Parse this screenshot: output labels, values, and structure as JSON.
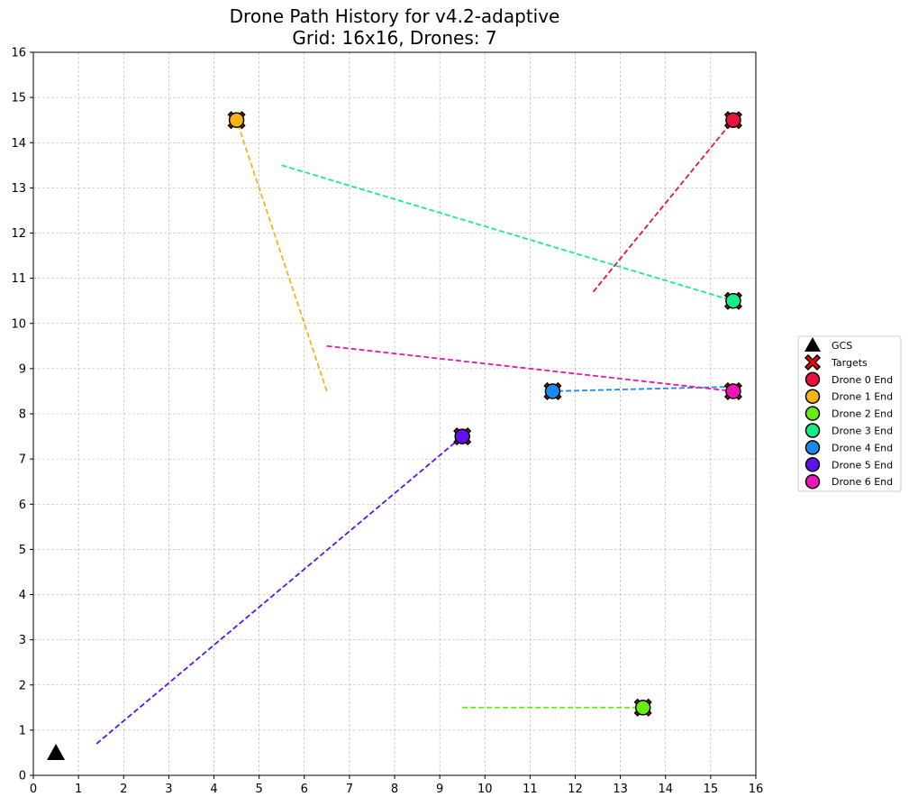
{
  "chart_data": {
    "type": "line",
    "title": "Drone Path History for v4.2-adaptive",
    "subtitle": "Grid: 16x16, Drones: 7",
    "xlim": [
      0,
      16
    ],
    "ylim": [
      0,
      16
    ],
    "xticks": [
      "0",
      "1",
      "2",
      "3",
      "4",
      "5",
      "6",
      "7",
      "8",
      "9",
      "10",
      "11",
      "12",
      "13",
      "14",
      "15",
      "16"
    ],
    "yticks": [
      "0",
      "1",
      "2",
      "3",
      "4",
      "5",
      "6",
      "7",
      "8",
      "9",
      "10",
      "11",
      "12",
      "13",
      "14",
      "15",
      "16"
    ],
    "grid": true,
    "legend_position": "right",
    "gcs": {
      "label": "GCS",
      "x": 0.5,
      "y": 0.5,
      "color": "#000000"
    },
    "targets": {
      "label": "Targets",
      "color": "#ff0000",
      "points": [
        [
          15.5,
          14.5
        ],
        [
          4.5,
          14.5
        ],
        [
          13.5,
          1.5
        ],
        [
          15.5,
          10.5
        ],
        [
          11.5,
          8.5
        ],
        [
          9.5,
          7.5
        ],
        [
          15.5,
          8.5
        ]
      ]
    },
    "series": [
      {
        "name": "Drone 0 End",
        "color": "#e8123c",
        "path": [
          [
            12.4,
            10.7
          ],
          [
            15.5,
            14.5
          ]
        ],
        "end": [
          15.5,
          14.5
        ]
      },
      {
        "name": "Drone 1 End",
        "color": "#f5b518",
        "path": [
          [
            6.5,
            8.5
          ],
          [
            4.5,
            14.5
          ]
        ],
        "end": [
          4.5,
          14.5
        ]
      },
      {
        "name": "Drone 2 End",
        "color": "#66ee14",
        "path": [
          [
            9.5,
            1.5
          ],
          [
            13.5,
            1.5
          ]
        ],
        "end": [
          13.5,
          1.5
        ]
      },
      {
        "name": "Drone 3 End",
        "color": "#14ee88",
        "path": [
          [
            5.5,
            13.5
          ],
          [
            15.5,
            10.5
          ]
        ],
        "end": [
          15.5,
          10.5
        ]
      },
      {
        "name": "Drone 4 End",
        "color": "#1a8bee",
        "path": [
          [
            15.5,
            8.6
          ],
          [
            11.5,
            8.5
          ]
        ],
        "end": [
          11.5,
          8.5
        ]
      },
      {
        "name": "Drone 5 End",
        "color": "#5d12ee",
        "path": [
          [
            1.4,
            0.7
          ],
          [
            9.5,
            7.5
          ]
        ],
        "end": [
          9.5,
          7.5
        ]
      },
      {
        "name": "Drone 6 End",
        "color": "#ee14b8",
        "path": [
          [
            6.5,
            9.5
          ],
          [
            15.5,
            8.5
          ]
        ],
        "end": [
          15.5,
          8.5
        ]
      }
    ]
  }
}
